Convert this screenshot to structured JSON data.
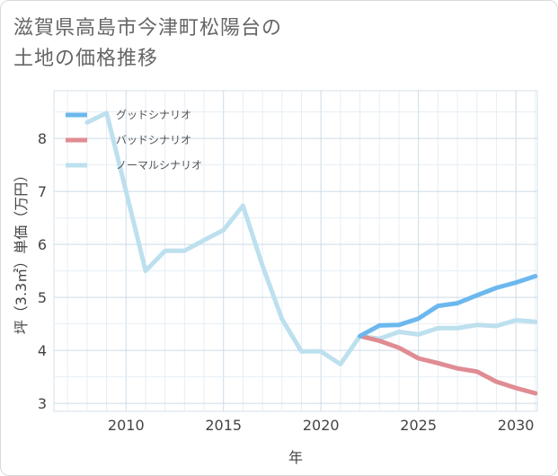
{
  "title_line1": "滋賀県高島市今津町松陽台の",
  "title_line2": "土地の価格推移",
  "chart_data": {
    "type": "line",
    "xlabel": "年",
    "ylabel": "坪（3.3㎡）単価（万円）",
    "xlim": [
      2006.3,
      2031.1
    ],
    "ylim": [
      2.85,
      8.9
    ],
    "xticks": [
      2010,
      2015,
      2020,
      2025,
      2030
    ],
    "yticks": [
      3,
      4,
      5,
      6,
      7,
      8
    ],
    "grid": true,
    "legend_position": "top-left",
    "series": [
      {
        "name": "グッドシナリオ",
        "color": "#6cb8ee",
        "x": [
          2022,
          2023,
          2024,
          2025,
          2026,
          2027,
          2028,
          2029,
          2030,
          2031
        ],
        "y": [
          4.27,
          4.47,
          4.48,
          4.6,
          4.84,
          4.89,
          5.04,
          5.18,
          5.28,
          5.4
        ]
      },
      {
        "name": "バッドシナリオ",
        "color": "#e08c93",
        "x": [
          2022,
          2023,
          2024,
          2025,
          2026,
          2027,
          2028,
          2029,
          2030,
          2031
        ],
        "y": [
          4.27,
          4.18,
          4.05,
          3.85,
          3.76,
          3.66,
          3.6,
          3.41,
          3.29,
          3.19
        ]
      },
      {
        "name": "ノーマルシナリオ",
        "color": "#bde0ee",
        "x": [
          2008,
          2009,
          2010,
          2011,
          2012,
          2013,
          2014,
          2015,
          2016,
          2017,
          2018,
          2019,
          2020,
          2021,
          2022,
          2023,
          2024,
          2025,
          2026,
          2027,
          2028,
          2029,
          2030,
          2031
        ],
        "y": [
          8.3,
          8.48,
          7.0,
          5.5,
          5.88,
          5.88,
          6.08,
          6.27,
          6.73,
          5.6,
          4.59,
          3.98,
          3.98,
          3.74,
          4.27,
          4.22,
          4.35,
          4.3,
          4.42,
          4.42,
          4.48,
          4.46,
          4.57,
          4.54
        ]
      }
    ]
  }
}
